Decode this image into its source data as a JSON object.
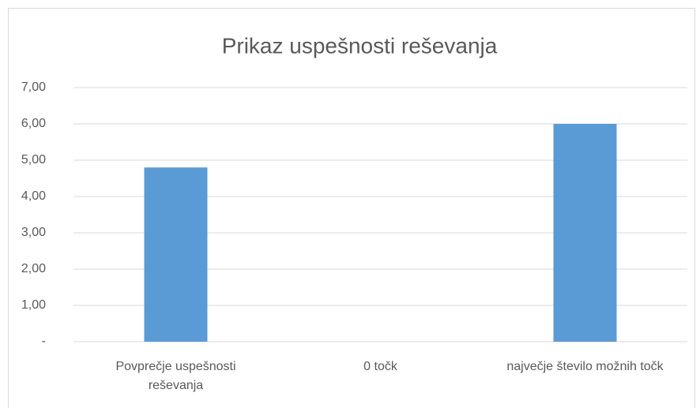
{
  "chart_data": {
    "type": "bar",
    "title": "Prikaz uspešnosti reševanja",
    "categories": [
      "Povprečje uspešnosti reševanja",
      "0 točk",
      "največje število možnih točk"
    ],
    "values": [
      4.8,
      0,
      6
    ],
    "color": "#5b9bd5",
    "ylim": [
      0,
      7
    ],
    "yticks": [
      {
        "value": 0,
        "label": "-"
      },
      {
        "value": 1,
        "label": "1,00"
      },
      {
        "value": 2,
        "label": "2,00"
      },
      {
        "value": 3,
        "label": "3,00"
      },
      {
        "value": 4,
        "label": "4,00"
      },
      {
        "value": 5,
        "label": "5,00"
      },
      {
        "value": 6,
        "label": "6,00"
      },
      {
        "value": 7,
        "label": "7,00"
      }
    ],
    "grid": true
  }
}
